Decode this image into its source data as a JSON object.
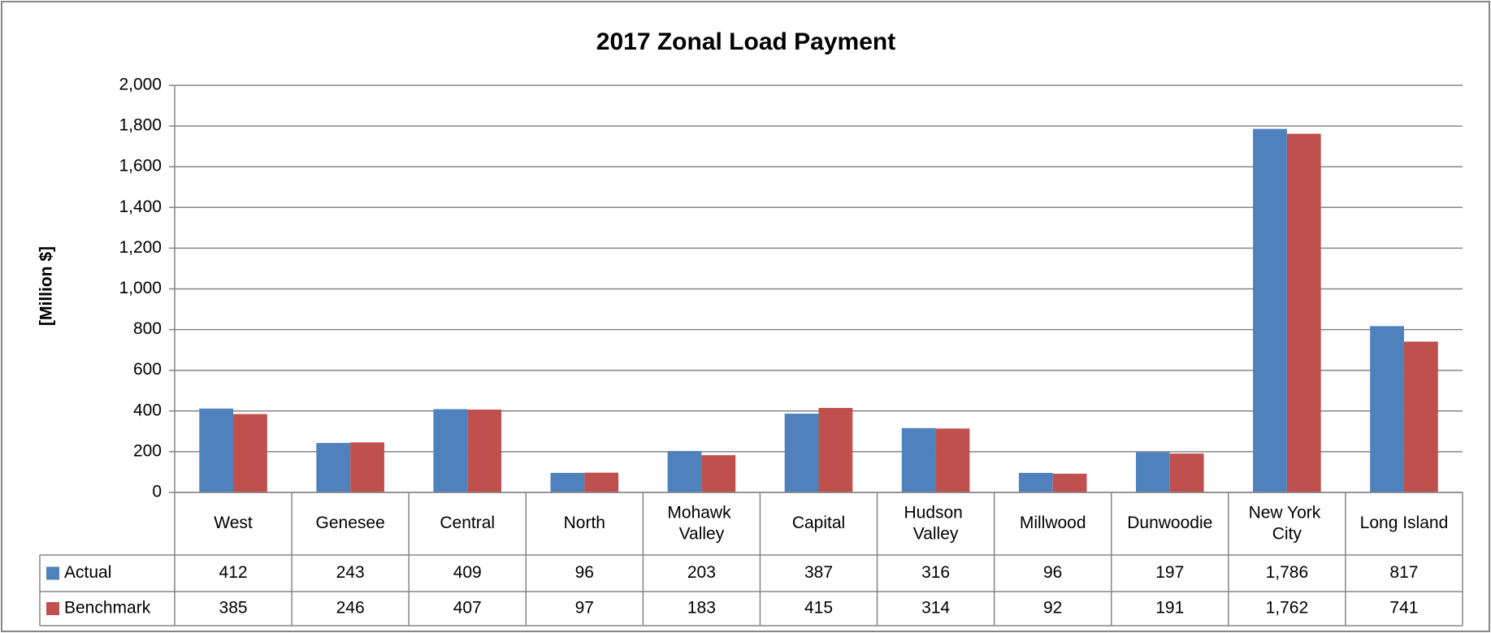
{
  "chart_data": {
    "type": "bar",
    "title": "2017 Zonal Load Payment",
    "y_label": "[Million $]",
    "categories": [
      "West",
      "Genesee",
      "Central",
      "North",
      "Mohawk Valley",
      "Capital",
      "Hudson Valley",
      "Millwood",
      "Dunwoodie",
      "New York City",
      "Long Island"
    ],
    "series": [
      {
        "name": "Actual",
        "color": "#4f81bd",
        "values": [
          412,
          243,
          409,
          96,
          203,
          387,
          316,
          96,
          197,
          1786,
          817
        ],
        "value_labels": [
          "412",
          "243",
          "409",
          "96",
          "203",
          "387",
          "316",
          "96",
          "197",
          "1,786",
          "817"
        ]
      },
      {
        "name": "Benchmark",
        "color": "#c0504d",
        "values": [
          385,
          246,
          407,
          97,
          183,
          415,
          314,
          92,
          191,
          1762,
          741
        ],
        "value_labels": [
          "385",
          "246",
          "407",
          "97",
          "183",
          "415",
          "314",
          "92",
          "191",
          "1,762",
          "741"
        ]
      }
    ],
    "ylim": [
      0,
      2000
    ],
    "yticks": [
      0,
      200,
      400,
      600,
      800,
      {
        "value": 1000,
        "label": "1,000"
      },
      {
        "value": 1200,
        "label": "1,200"
      },
      {
        "value": 1400,
        "label": "1,400"
      },
      {
        "value": 1600,
        "label": "1,600"
      },
      {
        "value": 1800,
        "label": "1,800"
      },
      {
        "value": 2000,
        "label": "2,000"
      }
    ],
    "grid": true,
    "data_table": true
  }
}
